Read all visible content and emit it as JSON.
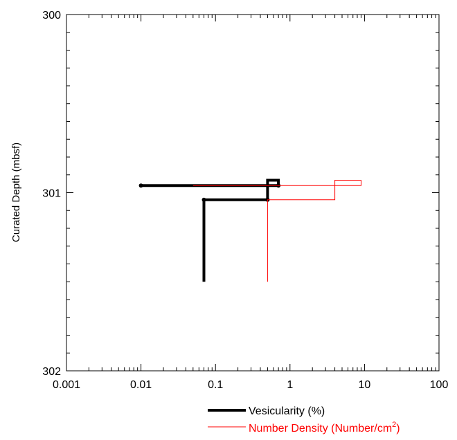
{
  "chart_data": {
    "type": "line",
    "title": "",
    "xlabel": "",
    "ylabel": "Curated Depth (mbsf)",
    "xscale": "log",
    "xlim": [
      0.001,
      100
    ],
    "ylim": [
      302,
      300
    ],
    "y_inverted": true,
    "x_ticks": [
      "0.001",
      "0.01",
      "0.1",
      "1",
      "10",
      "100"
    ],
    "y_ticks": [
      "300",
      "301",
      "302"
    ],
    "grid": false,
    "legend_position": "bottom-center",
    "series": [
      {
        "name": "Vesicularity (%)",
        "color": "#000000",
        "style": "step",
        "points": [
          {
            "x": 0.01,
            "y": 300.96
          },
          {
            "x": 0.7,
            "y": 300.96
          },
          {
            "x": 0.7,
            "y": 300.93
          },
          {
            "x": 0.5,
            "y": 300.93
          },
          {
            "x": 0.5,
            "y": 301.04
          },
          {
            "x": 0.07,
            "y": 301.04
          },
          {
            "x": 0.07,
            "y": 301.5
          }
        ]
      },
      {
        "name": "Number Density (Number/cm",
        "name_superscript": "2",
        "name_suffix": ")",
        "color": "#ff0000",
        "style": "step",
        "points": [
          {
            "x": 0.05,
            "y": 300.96
          },
          {
            "x": 9,
            "y": 300.96
          },
          {
            "x": 9,
            "y": 300.93
          },
          {
            "x": 4,
            "y": 300.93
          },
          {
            "x": 4,
            "y": 301.04
          },
          {
            "x": 0.5,
            "y": 301.04
          },
          {
            "x": 0.5,
            "y": 301.5
          }
        ]
      }
    ]
  }
}
